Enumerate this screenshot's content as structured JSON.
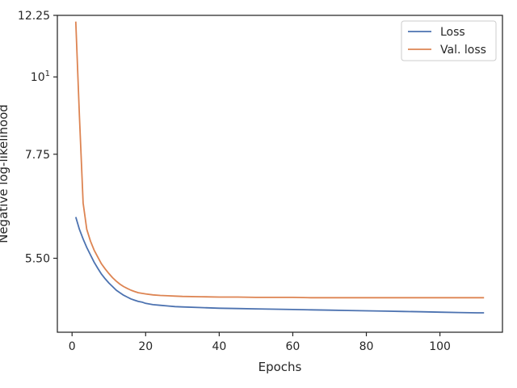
{
  "chart_data": {
    "type": "line",
    "xlabel": "Epochs",
    "ylabel": "Negative log-likelihood",
    "xlim": [
      -4,
      117
    ],
    "ylim": [
      4.31,
      12.25
    ],
    "y_scale": "log",
    "x_ticks": [
      {
        "value": 0,
        "label": "0"
      },
      {
        "value": 20,
        "label": "20"
      },
      {
        "value": 40,
        "label": "40"
      },
      {
        "value": 60,
        "label": "60"
      },
      {
        "value": 80,
        "label": "80"
      },
      {
        "value": 100,
        "label": "100"
      }
    ],
    "y_ticks": [
      {
        "value": 5.5,
        "label": "5.50"
      },
      {
        "value": 7.75,
        "label": "7.75"
      },
      {
        "value": 10,
        "label": "10",
        "superscript": "1"
      },
      {
        "value": 12.25,
        "label": "12.25"
      }
    ],
    "legend": {
      "placement": "top-right"
    },
    "series": [
      {
        "name": "Loss",
        "color": "#4c72b0",
        "x": [
          1,
          2,
          3,
          4,
          5,
          6,
          7,
          8,
          9,
          10,
          11,
          12,
          13,
          14,
          15,
          16,
          17,
          18,
          19,
          20,
          22,
          24,
          26,
          28,
          30,
          35,
          40,
          45,
          50,
          55,
          60,
          65,
          70,
          75,
          80,
          85,
          90,
          95,
          100,
          105,
          110,
          112
        ],
        "values": [
          6.3,
          6.05,
          5.86,
          5.7,
          5.56,
          5.43,
          5.32,
          5.22,
          5.14,
          5.07,
          5.01,
          4.95,
          4.91,
          4.87,
          4.84,
          4.81,
          4.79,
          4.77,
          4.76,
          4.74,
          4.72,
          4.71,
          4.7,
          4.69,
          4.685,
          4.675,
          4.665,
          4.66,
          4.655,
          4.65,
          4.645,
          4.64,
          4.635,
          4.63,
          4.625,
          4.62,
          4.615,
          4.61,
          4.605,
          4.6,
          4.595,
          4.595
        ]
      },
      {
        "name": "Val. loss",
        "color": "#dd8452",
        "x": [
          1,
          2,
          3,
          4,
          5,
          6,
          7,
          8,
          9,
          10,
          11,
          12,
          13,
          14,
          15,
          16,
          17,
          18,
          19,
          20,
          22,
          24,
          26,
          28,
          30,
          35,
          40,
          45,
          50,
          55,
          60,
          65,
          70,
          75,
          80,
          85,
          90,
          95,
          100,
          105,
          110,
          112
        ],
        "values": [
          12.0,
          8.8,
          6.6,
          6.05,
          5.82,
          5.65,
          5.52,
          5.4,
          5.31,
          5.23,
          5.16,
          5.1,
          5.05,
          5.01,
          4.98,
          4.95,
          4.93,
          4.91,
          4.9,
          4.89,
          4.875,
          4.865,
          4.86,
          4.855,
          4.85,
          4.845,
          4.84,
          4.84,
          4.835,
          4.835,
          4.835,
          4.83,
          4.83,
          4.83,
          4.83,
          4.83,
          4.83,
          4.83,
          4.83,
          4.83,
          4.83,
          4.83
        ]
      }
    ]
  }
}
